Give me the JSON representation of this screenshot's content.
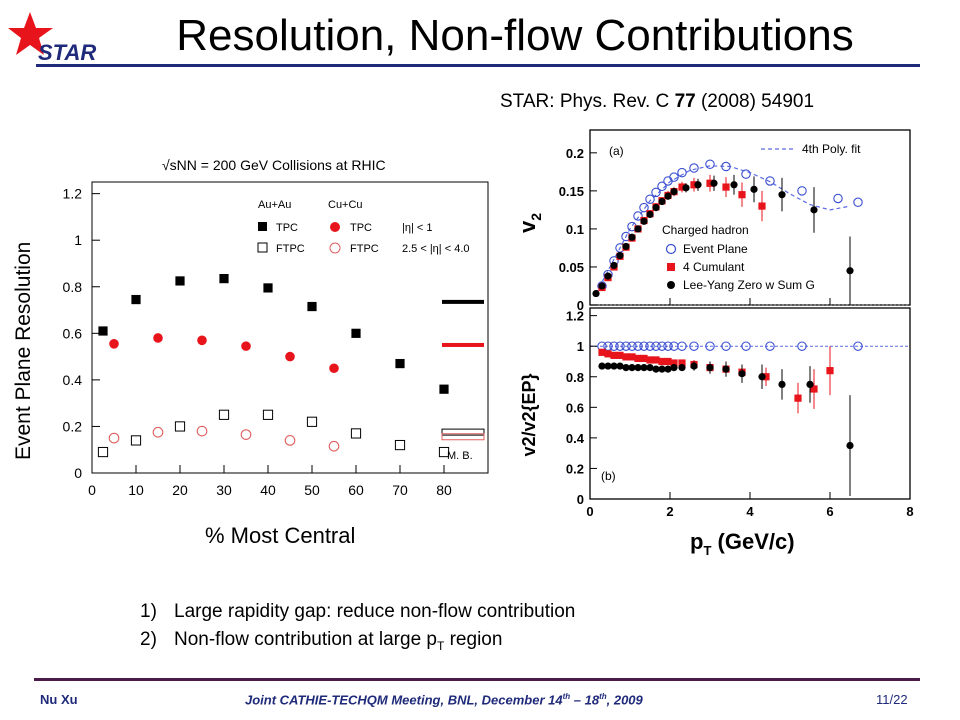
{
  "logo": {
    "text": "STAR",
    "star_color": "#e8141b",
    "text_color": "#1f2a7a"
  },
  "slide_title": "Resolution, Non-flow Contributions",
  "reference": {
    "prefix": "STAR: Phys. Rev. C ",
    "volume": "77",
    "suffix": " (2008) 54901"
  },
  "bullets": [
    {
      "num": "1)",
      "text": "Large rapidity gap: reduce non-flow contribution"
    },
    {
      "num": "2)",
      "text": "Non-flow contribution at large p",
      "sub": "T",
      "tail": " region"
    }
  ],
  "footer": {
    "author": "Nu Xu",
    "meeting_a": "Joint CATHIE-TECHQM Meeting, BNL, December 14",
    "sup1": "th",
    "meeting_b": " – 18",
    "sup2": "th",
    "meeting_c": ", 2009",
    "page": "11/22"
  },
  "chart_data": [
    {
      "type": "scatter",
      "title": "√sNN = 200 GeV Collisions at RHIC",
      "xlabel": "% Most Central",
      "ylabel": "Event Plane Resolution",
      "xlim": [
        0,
        90
      ],
      "ylim": [
        0,
        1.25
      ],
      "x_ticks": [
        "0",
        "10",
        "20",
        "30",
        "40",
        "50",
        "60",
        "70",
        "80"
      ],
      "y_ticks": [
        "0",
        "0.2",
        "0.4",
        "0.6",
        "0.8",
        "1",
        "1.2"
      ],
      "legend": {
        "au_header": "Au+Au",
        "cu_header": "Cu+Cu",
        "tpc": "TPC",
        "ftpc": "FTPC",
        "eta_tpc": "|η| < 1",
        "eta_ftpc": "2.5 < |η| < 4.0"
      },
      "mb_label": "M. B.",
      "colors": {
        "au": "#000000",
        "cu": "#e8141b",
        "cu_ftpc": "#e06060"
      },
      "series": [
        {
          "name": "Au+Au TPC",
          "marker": "filled-square",
          "x": [
            2.5,
            10,
            20,
            30,
            40,
            50,
            60,
            70,
            80
          ],
          "y": [
            0.61,
            0.745,
            0.825,
            0.835,
            0.795,
            0.715,
            0.6,
            0.47,
            0.36
          ]
        },
        {
          "name": "Cu+Cu TPC",
          "marker": "filled-circle",
          "x": [
            5,
            15,
            25,
            35,
            45,
            55
          ],
          "y": [
            0.555,
            0.58,
            0.57,
            0.545,
            0.5,
            0.45
          ]
        },
        {
          "name": "Au+Au FTPC",
          "marker": "open-square",
          "x": [
            2.5,
            10,
            20,
            30,
            40,
            50,
            60,
            70,
            80
          ],
          "y": [
            0.09,
            0.14,
            0.2,
            0.25,
            0.25,
            0.22,
            0.17,
            0.12,
            0.09
          ]
        },
        {
          "name": "Cu+Cu FTPC",
          "marker": "open-circle",
          "x": [
            5,
            15,
            25,
            35,
            45,
            55
          ],
          "y": [
            0.15,
            0.175,
            0.18,
            0.165,
            0.14,
            0.115
          ]
        }
      ],
      "mb_bars": [
        {
          "series": "Au+Au TPC",
          "y": 0.735
        },
        {
          "series": "Cu+Cu TPC",
          "y": 0.55
        },
        {
          "series": "Au+Au FTPC",
          "y": 0.18
        },
        {
          "series": "Cu+Cu FTPC",
          "y": 0.16
        }
      ]
    },
    {
      "type": "scatter",
      "panel_label": "(a)",
      "xlabel": "pT (GeV/c)",
      "ylabel": "v2",
      "xlim": [
        0,
        8
      ],
      "ylim": [
        0,
        0.23
      ],
      "x_ticks": [
        "0",
        "2",
        "4",
        "6",
        "8"
      ],
      "y_ticks": [
        "0",
        "0.05",
        "0.1",
        "0.15",
        "0.2"
      ],
      "fit_label": "4th Poly. fit",
      "legend_title": "Charged hadron",
      "colors": {
        "ep": "#3a4ed0",
        "cum": "#e8141b",
        "lyz": "#000000",
        "fit": "#5a6ae0"
      },
      "fit_curve": {
        "x": [
          0.15,
          0.6,
          1.0,
          1.5,
          2.0,
          2.5,
          3.0,
          3.5,
          4.0,
          4.5,
          5.0,
          5.5,
          6.0,
          6.5
        ],
        "y": [
          0.015,
          0.06,
          0.1,
          0.137,
          0.162,
          0.177,
          0.183,
          0.182,
          0.174,
          0.162,
          0.146,
          0.132,
          0.125,
          0.13
        ]
      },
      "series": [
        {
          "name": "Event Plane",
          "marker": "open-circle",
          "x": [
            0.3,
            0.45,
            0.6,
            0.75,
            0.9,
            1.05,
            1.2,
            1.35,
            1.5,
            1.65,
            1.8,
            1.95,
            2.1,
            2.3,
            2.6,
            3.0,
            3.4,
            3.9,
            4.5,
            5.3,
            6.2,
            6.7
          ],
          "y": [
            0.025,
            0.04,
            0.058,
            0.075,
            0.09,
            0.103,
            0.117,
            0.128,
            0.139,
            0.148,
            0.156,
            0.163,
            0.168,
            0.174,
            0.18,
            0.185,
            0.182,
            0.172,
            0.163,
            0.15,
            0.14,
            0.135
          ]
        },
        {
          "name": "4 Cumulant",
          "marker": "filled-square",
          "err": [
            0.004,
            0.004,
            0.004,
            0.004,
            0.004,
            0.004,
            0.004,
            0.004,
            0.005,
            0.005,
            0.005,
            0.006,
            0.006,
            0.007,
            0.009,
            0.011,
            0.013,
            0.016,
            0.02
          ],
          "x": [
            0.3,
            0.45,
            0.6,
            0.75,
            0.9,
            1.05,
            1.2,
            1.35,
            1.5,
            1.65,
            1.8,
            1.95,
            2.1,
            2.3,
            2.6,
            3.0,
            3.4,
            3.8,
            4.3
          ],
          "y": [
            0.023,
            0.036,
            0.05,
            0.064,
            0.076,
            0.088,
            0.1,
            0.111,
            0.12,
            0.129,
            0.137,
            0.144,
            0.149,
            0.155,
            0.158,
            0.16,
            0.155,
            0.145,
            0.13
          ]
        },
        {
          "name": "Lee-Yang Zero w Sum G",
          "marker": "filled-circle",
          "err": [
            0.003,
            0.003,
            0.003,
            0.003,
            0.003,
            0.003,
            0.003,
            0.003,
            0.003,
            0.003,
            0.004,
            0.004,
            0.004,
            0.005,
            0.006,
            0.008,
            0.01,
            0.013,
            0.017,
            0.022,
            0.03,
            0.045
          ],
          "x": [
            0.15,
            0.3,
            0.45,
            0.6,
            0.75,
            0.9,
            1.05,
            1.2,
            1.35,
            1.5,
            1.65,
            1.8,
            1.95,
            2.1,
            2.4,
            2.7,
            3.1,
            3.6,
            4.1,
            4.8,
            5.6,
            6.5
          ],
          "y": [
            0.015,
            0.025,
            0.038,
            0.052,
            0.065,
            0.077,
            0.089,
            0.1,
            0.11,
            0.119,
            0.128,
            0.136,
            0.143,
            0.149,
            0.154,
            0.158,
            0.16,
            0.158,
            0.152,
            0.145,
            0.125,
            0.045
          ]
        }
      ]
    },
    {
      "type": "scatter",
      "panel_label": "(b)",
      "xlabel": "pT (GeV/c)",
      "ylabel": "v2/v2{EP}",
      "xlim": [
        0,
        8
      ],
      "ylim": [
        0,
        1.25
      ],
      "x_ticks": [
        "0",
        "2",
        "4",
        "6",
        "8"
      ],
      "y_ticks": [
        "0",
        "0.2",
        "0.4",
        "0.6",
        "0.8",
        "1",
        "1.2"
      ],
      "series": [
        {
          "name": "Event Plane",
          "marker": "open-circle",
          "x": [
            0.3,
            0.45,
            0.6,
            0.75,
            0.9,
            1.05,
            1.2,
            1.35,
            1.5,
            1.65,
            1.8,
            1.95,
            2.1,
            2.3,
            2.6,
            3.0,
            3.4,
            3.9,
            4.5,
            5.3,
            6.7
          ],
          "y": [
            1,
            1,
            1,
            1,
            1,
            1,
            1,
            1,
            1,
            1,
            1,
            1,
            1,
            1,
            1,
            1,
            1,
            1,
            1,
            1,
            1
          ]
        },
        {
          "name": "4 Cumulant",
          "marker": "filled-square",
          "err": [
            0.02,
            0.02,
            0.02,
            0.02,
            0.02,
            0.02,
            0.02,
            0.02,
            0.02,
            0.02,
            0.02,
            0.02,
            0.02,
            0.02,
            0.03,
            0.03,
            0.04,
            0.05,
            0.06,
            0.1,
            0.13,
            0.16
          ],
          "x": [
            0.3,
            0.45,
            0.6,
            0.75,
            0.9,
            1.05,
            1.2,
            1.35,
            1.5,
            1.65,
            1.8,
            1.95,
            2.1,
            2.3,
            2.6,
            3.0,
            3.4,
            3.8,
            4.4,
            5.2,
            5.6,
            6.0
          ],
          "y": [
            0.96,
            0.95,
            0.94,
            0.94,
            0.93,
            0.93,
            0.92,
            0.92,
            0.91,
            0.91,
            0.9,
            0.9,
            0.89,
            0.89,
            0.88,
            0.86,
            0.85,
            0.83,
            0.8,
            0.66,
            0.72,
            0.84
          ]
        },
        {
          "name": "Lee-Yang Zero w Sum G",
          "marker": "filled-circle",
          "err": [
            0.015,
            0.015,
            0.015,
            0.015,
            0.015,
            0.015,
            0.015,
            0.015,
            0.015,
            0.015,
            0.015,
            0.015,
            0.02,
            0.02,
            0.03,
            0.04,
            0.05,
            0.06,
            0.08,
            0.1,
            0.12,
            0.33
          ],
          "x": [
            0.3,
            0.45,
            0.6,
            0.75,
            0.9,
            1.05,
            1.2,
            1.35,
            1.5,
            1.65,
            1.8,
            1.95,
            2.1,
            2.3,
            2.6,
            3.0,
            3.4,
            3.8,
            4.3,
            4.8,
            5.5,
            6.5
          ],
          "y": [
            0.87,
            0.87,
            0.87,
            0.87,
            0.86,
            0.86,
            0.86,
            0.86,
            0.86,
            0.85,
            0.85,
            0.85,
            0.86,
            0.86,
            0.87,
            0.86,
            0.85,
            0.82,
            0.8,
            0.75,
            0.75,
            0.35
          ]
        }
      ]
    }
  ]
}
